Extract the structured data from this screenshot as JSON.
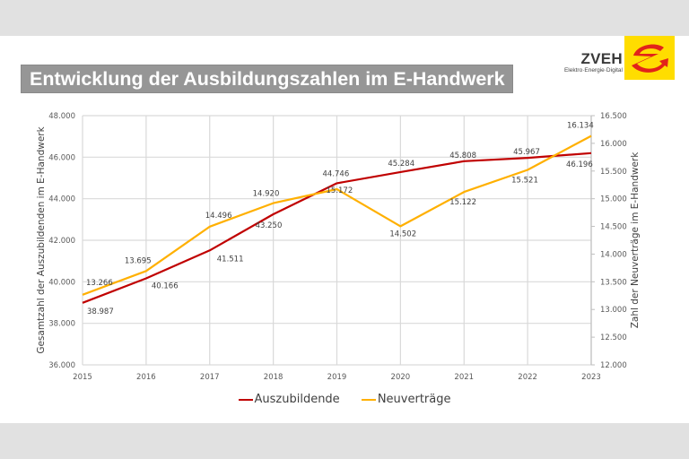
{
  "slide": {
    "title": "Entwicklung der Ausbildungszahlen im E-Handwerk",
    "logo": {
      "name": "ZVEH",
      "tagline": "Elektro·Energie·Digital",
      "icon": "e-mark-logo-icon",
      "background": "#ffdd00",
      "mark_color": "#e2231a"
    }
  },
  "chart_data": {
    "type": "line",
    "title": "Entwicklung der Ausbildungszahlen im E-Handwerk",
    "x": [
      "2015",
      "2016",
      "2017",
      "2018",
      "2019",
      "2020",
      "2021",
      "2022",
      "2023"
    ],
    "xlabel": "",
    "ylabel": "Gesamtzahl der Auszubildenden im E-Handwerk",
    "y2label": "Zahl der Neuverträge im E-Handwerk",
    "ylim": [
      36000,
      48000
    ],
    "y_ticks": [
      "36.000",
      "38.000",
      "40.000",
      "42.000",
      "44.000",
      "46.000",
      "48.000"
    ],
    "y2lim": [
      12000,
      16500
    ],
    "y2_ticks": [
      "12.000",
      "12.500",
      "13.000",
      "13.500",
      "14.000",
      "14.500",
      "15.000",
      "15.500",
      "16.000",
      "16.500"
    ],
    "grid": true,
    "legend_position": "bottom",
    "series": [
      {
        "name": "Auszubildende",
        "axis": "left",
        "color": "#c00000",
        "values": [
          38987,
          40166,
          41511,
          43250,
          44746,
          45284,
          45808,
          45967,
          46196
        ],
        "labels": [
          "38.987",
          "40.166",
          "41.511",
          "43.250",
          "44.746",
          "45.284",
          "45.808",
          "45.967",
          "46.196"
        ]
      },
      {
        "name": "Neuverträge",
        "axis": "right",
        "color": "#ffb000",
        "values": [
          13266,
          13695,
          14496,
          14920,
          15172,
          14502,
          15122,
          15521,
          16134
        ],
        "labels": [
          "13.266",
          "13.695",
          "14.496",
          "14.920",
          "15.172",
          "14.502",
          "15.122",
          "15.521",
          "16.134"
        ]
      }
    ]
  }
}
